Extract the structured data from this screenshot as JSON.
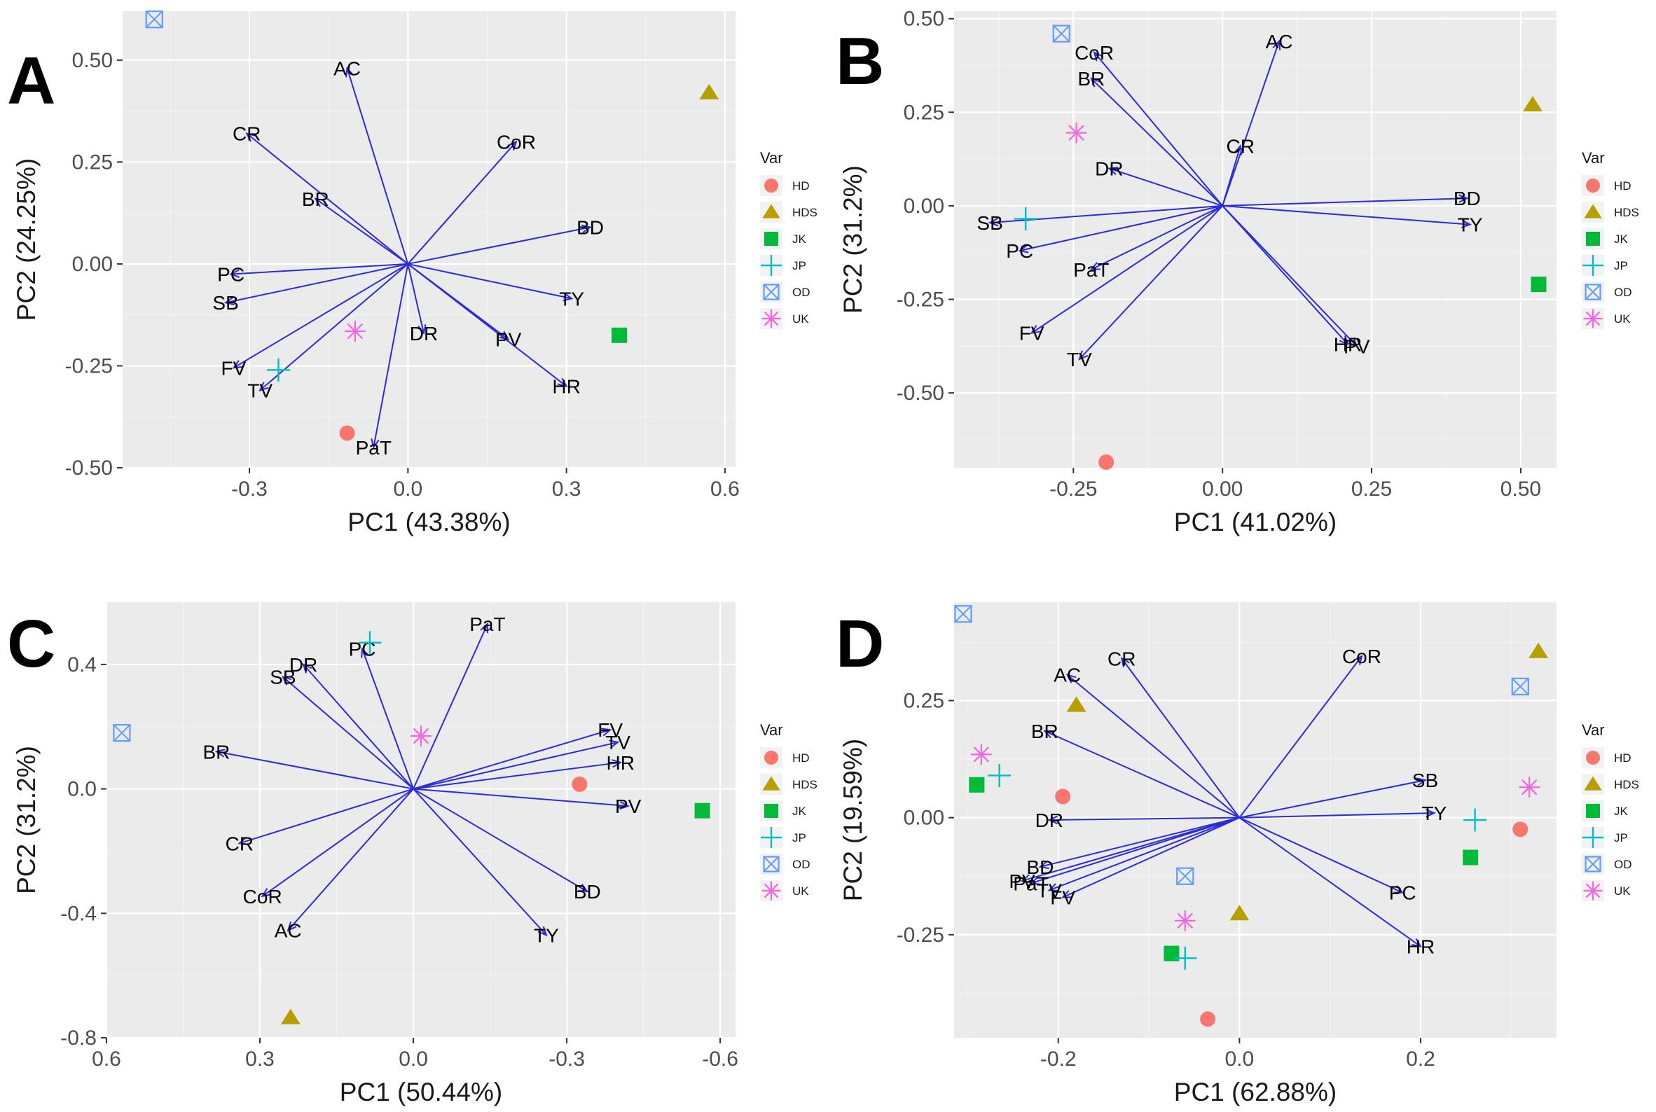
{
  "legend": {
    "title": "Var",
    "groups": [
      {
        "key": "HD",
        "shape": "circle",
        "color": "#F8766D"
      },
      {
        "key": "HDS",
        "shape": "triangle",
        "color": "#B79F00"
      },
      {
        "key": "JK",
        "shape": "square",
        "color": "#00BA38"
      },
      {
        "key": "JP",
        "shape": "plus",
        "color": "#00BFC4"
      },
      {
        "key": "OD",
        "shape": "boxx",
        "color": "#619CFF"
      },
      {
        "key": "UK",
        "shape": "star",
        "color": "#F564E3"
      }
    ]
  },
  "arrow_color": "#2b2bdb",
  "chart_data": [
    {
      "panel": "A",
      "type": "scatter",
      "xlabel": "PC1 (43.38%)",
      "ylabel": "PC2 (24.25%)",
      "xlim": [
        -0.54,
        0.62
      ],
      "ylim": [
        -0.5,
        0.62
      ],
      "xreverse": false,
      "xticks": [
        -0.3,
        0.0,
        0.3,
        0.6
      ],
      "xtick_labels": [
        "-0.3",
        "0.0",
        "0.3",
        "0.6"
      ],
      "yticks": [
        -0.5,
        -0.25,
        0.0,
        0.25,
        0.5
      ],
      "ytick_labels": [
        "-0.50",
        "-0.25",
        "0.00",
        "0.25",
        "0.50"
      ],
      "variables": [
        {
          "name": "AC",
          "x": -0.115,
          "y": 0.48
        },
        {
          "name": "CR",
          "x": -0.305,
          "y": 0.32
        },
        {
          "name": "CoR",
          "x": 0.205,
          "y": 0.3
        },
        {
          "name": "BR",
          "x": -0.175,
          "y": 0.16
        },
        {
          "name": "BD",
          "x": 0.345,
          "y": 0.09
        },
        {
          "name": "PC",
          "x": -0.335,
          "y": -0.025
        },
        {
          "name": "SB",
          "x": -0.345,
          "y": -0.095
        },
        {
          "name": "TY",
          "x": 0.31,
          "y": -0.085
        },
        {
          "name": "DR",
          "x": 0.03,
          "y": -0.17
        },
        {
          "name": "PV",
          "x": 0.19,
          "y": -0.185
        },
        {
          "name": "FV",
          "x": -0.33,
          "y": -0.255
        },
        {
          "name": "TV",
          "x": -0.28,
          "y": -0.31
        },
        {
          "name": "HR",
          "x": 0.3,
          "y": -0.3
        },
        {
          "name": "PaT",
          "x": -0.065,
          "y": -0.45
        }
      ],
      "points": [
        {
          "group": "OD",
          "x": -0.48,
          "y": 0.6
        },
        {
          "group": "HDS",
          "x": 0.57,
          "y": 0.42
        },
        {
          "group": "JK",
          "x": 0.4,
          "y": -0.175
        },
        {
          "group": "UK",
          "x": -0.1,
          "y": -0.165
        },
        {
          "group": "JP",
          "x": -0.245,
          "y": -0.26
        },
        {
          "group": "HD",
          "x": -0.115,
          "y": -0.415
        }
      ]
    },
    {
      "panel": "B",
      "type": "scatter",
      "xlabel": "PC1 (41.02%)",
      "ylabel": "PC2 (31.2%)",
      "xlim": [
        -0.45,
        0.56
      ],
      "ylim": [
        -0.7,
        0.52
      ],
      "xreverse": false,
      "xticks": [
        -0.25,
        0.0,
        0.25,
        0.5
      ],
      "xtick_labels": [
        "-0.25",
        "0.00",
        "0.25",
        "0.50"
      ],
      "yticks": [
        -0.5,
        -0.25,
        0.0,
        0.25,
        0.5
      ],
      "ytick_labels": [
        "-0.50",
        "-0.25",
        "0.00",
        "0.25",
        "0.50"
      ],
      "variables": [
        {
          "name": "AC",
          "x": 0.095,
          "y": 0.44
        },
        {
          "name": "CoR",
          "x": -0.215,
          "y": 0.41
        },
        {
          "name": "BR",
          "x": -0.22,
          "y": 0.34
        },
        {
          "name": "CR",
          "x": 0.03,
          "y": 0.16
        },
        {
          "name": "DR",
          "x": -0.19,
          "y": 0.1
        },
        {
          "name": "BD",
          "x": 0.41,
          "y": 0.02
        },
        {
          "name": "TY",
          "x": 0.415,
          "y": -0.05
        },
        {
          "name": "SB",
          "x": -0.39,
          "y": -0.045
        },
        {
          "name": "PC",
          "x": -0.34,
          "y": -0.12
        },
        {
          "name": "PaT",
          "x": -0.22,
          "y": -0.17
        },
        {
          "name": "HR",
          "x": 0.21,
          "y": -0.37
        },
        {
          "name": "PV",
          "x": 0.225,
          "y": -0.375
        },
        {
          "name": "FV",
          "x": -0.32,
          "y": -0.34
        },
        {
          "name": "TV",
          "x": -0.24,
          "y": -0.41
        }
      ],
      "points": [
        {
          "group": "OD",
          "x": -0.27,
          "y": 0.46
        },
        {
          "group": "HDS",
          "x": 0.52,
          "y": 0.27
        },
        {
          "group": "UK",
          "x": -0.245,
          "y": 0.195
        },
        {
          "group": "JP",
          "x": -0.33,
          "y": -0.035
        },
        {
          "group": "JK",
          "x": 0.53,
          "y": -0.21
        },
        {
          "group": "HD",
          "x": -0.195,
          "y": -0.685
        }
      ]
    },
    {
      "panel": "C",
      "type": "scatter",
      "xlabel": "PC1 (50.44%)",
      "ylabel": "PC2 (31.2%)",
      "xlim": [
        0.6,
        -0.63
      ],
      "ylim": [
        -0.8,
        0.6
      ],
      "xreverse": true,
      "xticks": [
        0.6,
        0.3,
        0.0,
        -0.3,
        -0.6
      ],
      "xtick_labels": [
        "0.6",
        "0.3",
        "0.0",
        "-0.3",
        "-0.6"
      ],
      "yticks": [
        -0.8,
        -0.4,
        0.0,
        0.4
      ],
      "ytick_labels": [
        "-0.8",
        "-0.4",
        "0.0",
        "0.4"
      ],
      "variables": [
        {
          "name": "PaT",
          "x": -0.145,
          "y": 0.53
        },
        {
          "name": "PC",
          "x": 0.1,
          "y": 0.45
        },
        {
          "name": "DR",
          "x": 0.215,
          "y": 0.4
        },
        {
          "name": "SB",
          "x": 0.255,
          "y": 0.36
        },
        {
          "name": "BR",
          "x": 0.385,
          "y": 0.12
        },
        {
          "name": "FV",
          "x": -0.385,
          "y": 0.19
        },
        {
          "name": "TV",
          "x": -0.4,
          "y": 0.15
        },
        {
          "name": "HR",
          "x": -0.405,
          "y": 0.085
        },
        {
          "name": "PV",
          "x": -0.42,
          "y": -0.055
        },
        {
          "name": "CR",
          "x": 0.34,
          "y": -0.175
        },
        {
          "name": "CoR",
          "x": 0.295,
          "y": -0.345
        },
        {
          "name": "BD",
          "x": -0.34,
          "y": -0.33
        },
        {
          "name": "AC",
          "x": 0.245,
          "y": -0.455
        },
        {
          "name": "TY",
          "x": -0.26,
          "y": -0.47
        }
      ],
      "points": [
        {
          "group": "JP",
          "x": 0.085,
          "y": 0.47
        },
        {
          "group": "OD",
          "x": 0.57,
          "y": 0.18
        },
        {
          "group": "UK",
          "x": -0.015,
          "y": 0.17
        },
        {
          "group": "HD",
          "x": -0.325,
          "y": 0.015
        },
        {
          "group": "JK",
          "x": -0.565,
          "y": -0.07
        },
        {
          "group": "HDS",
          "x": 0.24,
          "y": -0.735
        }
      ]
    },
    {
      "panel": "D",
      "type": "scatter",
      "xlabel": "PC1 (62.88%)",
      "ylabel": "PC2 (19.59%)",
      "xlim": [
        -0.315,
        0.35
      ],
      "ylim": [
        -0.47,
        0.46
      ],
      "xreverse": false,
      "xticks": [
        -0.2,
        0.0,
        0.2
      ],
      "xtick_labels": [
        "-0.2",
        "0.0",
        "0.2"
      ],
      "yticks": [
        -0.25,
        0.0,
        0.25
      ],
      "ytick_labels": [
        "-0.25",
        "0.00",
        "0.25"
      ],
      "variables": [
        {
          "name": "CR",
          "x": -0.13,
          "y": 0.34
        },
        {
          "name": "CoR",
          "x": 0.135,
          "y": 0.345
        },
        {
          "name": "AC",
          "x": -0.19,
          "y": 0.305
        },
        {
          "name": "BR",
          "x": -0.215,
          "y": 0.185
        },
        {
          "name": "SB",
          "x": 0.205,
          "y": 0.08
        },
        {
          "name": "TY",
          "x": 0.215,
          "y": 0.01
        },
        {
          "name": "DR",
          "x": -0.21,
          "y": -0.005
        },
        {
          "name": "BD",
          "x": -0.22,
          "y": -0.105
        },
        {
          "name": "PV",
          "x": -0.24,
          "y": -0.135
        },
        {
          "name": "PaT",
          "x": -0.23,
          "y": -0.14
        },
        {
          "name": "TV",
          "x": -0.21,
          "y": -0.155
        },
        {
          "name": "FV",
          "x": -0.195,
          "y": -0.17
        },
        {
          "name": "PC",
          "x": 0.18,
          "y": -0.16
        },
        {
          "name": "HR",
          "x": 0.2,
          "y": -0.275
        }
      ],
      "points": [
        {
          "group": "OD",
          "x": -0.305,
          "y": 0.435
        },
        {
          "group": "HDS",
          "x": 0.33,
          "y": 0.355
        },
        {
          "group": "OD",
          "x": 0.31,
          "y": 0.28
        },
        {
          "group": "HDS",
          "x": -0.18,
          "y": 0.24
        },
        {
          "group": "UK",
          "x": -0.285,
          "y": 0.135
        },
        {
          "group": "JP",
          "x": -0.265,
          "y": 0.09
        },
        {
          "group": "JK",
          "x": -0.29,
          "y": 0.07
        },
        {
          "group": "HD",
          "x": -0.195,
          "y": 0.045
        },
        {
          "group": "UK",
          "x": 0.32,
          "y": 0.065
        },
        {
          "group": "JP",
          "x": 0.26,
          "y": -0.005
        },
        {
          "group": "HD",
          "x": 0.31,
          "y": -0.025
        },
        {
          "group": "JK",
          "x": 0.255,
          "y": -0.085
        },
        {
          "group": "OD",
          "x": -0.06,
          "y": -0.125
        },
        {
          "group": "HDS",
          "x": 0.0,
          "y": -0.205
        },
        {
          "group": "UK",
          "x": -0.06,
          "y": -0.22
        },
        {
          "group": "JK",
          "x": -0.075,
          "y": -0.29
        },
        {
          "group": "JP",
          "x": -0.06,
          "y": -0.3
        },
        {
          "group": "HD",
          "x": -0.035,
          "y": -0.43
        }
      ]
    }
  ]
}
